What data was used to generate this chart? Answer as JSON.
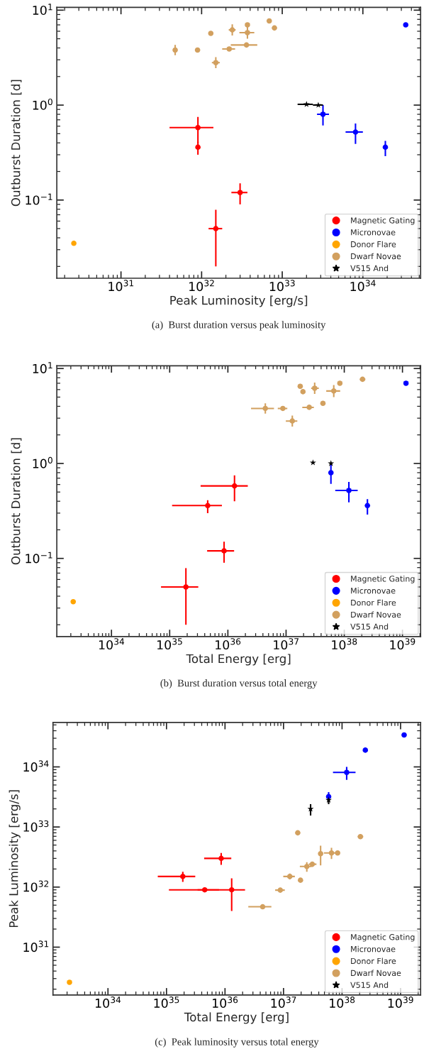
{
  "chart_data": [
    {
      "type": "scatter",
      "xlabel": "Peak Luminosity [erg/s]",
      "ylabel": "Outburst Duration [d]",
      "annotations": [
        "(a)  Burst duration versus peak luminosity"
      ],
      "log": "xy",
      "legend": "bottom right",
      "xlim": [
        1.6e+30,
        5.2e+34
      ],
      "ylim": [
        0.015,
        10.7
      ],
      "xticks": [
        {
          "value": 1e+31,
          "label": "10$^{31}$"
        },
        {
          "value": 1e+32,
          "label": "10$^{32}$"
        },
        {
          "value": 1e+33,
          "label": "10$^{33}$"
        },
        {
          "value": 1e+34,
          "label": "10$^{34}$"
        }
      ],
      "yticks": [
        {
          "value": 0.1,
          "label": "10$^{−1}$"
        },
        {
          "value": 1,
          "label": "10$^{0}$"
        },
        {
          "value": 10,
          "label": "10$^{1}$"
        }
      ],
      "series": [
        {
          "name": "Magnetic Gating",
          "color": "#ff0000",
          "marker": "circle",
          "x": [
            9e+31,
            9e+31,
            3e+32,
            1.5e+32
          ],
          "values": [
            0.58,
            0.36,
            0.12,
            0.05
          ],
          "xerrors": [
            [
              4e+31,
              1.4e+32
            ],
            null,
            [
              2.34e+32,
              3.7e+32
            ],
            [
              1.22e+32,
              1.8e+32
            ]
          ],
          "errors": [
            [
              0.4,
              0.75
            ],
            [
              0.3,
              0.41
            ],
            [
              0.09,
              0.15
            ],
            [
              0.02,
              0.079
            ]
          ]
        },
        {
          "name": "Micronovae",
          "color": "#0000ff",
          "marker": "circle",
          "x": [
            3.2e+33,
            8.1e+33,
            1.9e+34,
            3.4e+34
          ],
          "values": [
            0.8,
            0.52,
            0.36,
            7.0
          ],
          "xerrors": [
            [
              2.7e+33,
              3.8e+33
            ],
            [
              6.1e+33,
              1e+34
            ],
            null,
            null
          ],
          "errors": [
            [
              0.61,
              1.0
            ],
            [
              0.39,
              0.64
            ],
            [
              0.29,
              0.42
            ],
            null
          ]
        },
        {
          "name": "Donor Flare",
          "color": "#ffa500",
          "marker": "circle",
          "x": [
            2.6e+30
          ],
          "values": [
            0.035
          ]
        },
        {
          "name": "Dwarf Novae",
          "color": "#d2a05f",
          "marker": "circle",
          "x": [
            4.7e+31,
            8.9e+31,
            1.3e+32,
            1.5e+32,
            2.2e+32,
            2.4e+32,
            3.7e+32,
            3.7e+32,
            3.6e+32,
            6.9e+32,
            8e+32
          ],
          "values": [
            3.8,
            3.8,
            5.7,
            2.8,
            3.9,
            6.2,
            7.0,
            5.8,
            4.3,
            7.7,
            6.5
          ],
          "xerrors": [
            null,
            null,
            null,
            [
              1.34e+32,
              1.68e+32
            ],
            [
              1.8e+32,
              2.6e+32
            ],
            [
              2.17e+32,
              2.64e+32
            ],
            null,
            [
              2.94e+32,
              4.5e+32
            ],
            [
              2.3e+32,
              4.9e+32
            ],
            null,
            null
          ],
          "errors": [
            [
              3.35,
              4.3
            ],
            null,
            null,
            [
              2.45,
              3.2
            ],
            null,
            [
              5.4,
              7.1
            ],
            null,
            [
              5.0,
              6.7
            ],
            null,
            null,
            null
          ]
        },
        {
          "name": "V515 And",
          "color": "#000000",
          "marker": "star",
          "x": [
            2e+33,
            2.8e+33
          ],
          "values": [
            1.02,
            1.0
          ],
          "xerrors": [
            [
              1.55e+33,
              2.4e+33
            ],
            [
              2.4e+33,
              3.2e+33
            ]
          ]
        }
      ]
    },
    {
      "type": "scatter",
      "xlabel": "Total Energy [erg]",
      "ylabel": "Outburst Duration [d]",
      "annotations": [
        "(b)  Burst duration versus total energy"
      ],
      "log": "xy",
      "legend": "bottom right",
      "xlim": [
        1.15e+33,
        2.05e+39
      ],
      "ylim": [
        0.015,
        10.7
      ],
      "xticks": [
        {
          "value": 1e+34,
          "label": "10$^{34}$"
        },
        {
          "value": 1e+35,
          "label": "10$^{35}$"
        },
        {
          "value": 1e+36,
          "label": "10$^{36}$"
        },
        {
          "value": 1e+37,
          "label": "10$^{37}$"
        },
        {
          "value": 1e+38,
          "label": "10$^{38}$"
        },
        {
          "value": 1e+39,
          "label": "10$^{39}$"
        }
      ],
      "yticks": [
        {
          "value": 0.1,
          "label": "10$^{−1}$"
        },
        {
          "value": 1,
          "label": "10$^{0}$"
        },
        {
          "value": 10,
          "label": "10$^{1}$"
        }
      ],
      "series": [
        {
          "name": "Magnetic Gating",
          "color": "#ff0000",
          "marker": "circle",
          "x": [
            1.3e+36,
            4.5e+35,
            8.6e+35,
            1.9e+35
          ],
          "values": [
            0.58,
            0.36,
            0.12,
            0.05
          ],
          "xerrors": [
            [
              3.4e+35,
              2.2e+36
            ],
            [
              1.1e+35,
              7.9e+35
            ],
            [
              4.4e+35,
              1.28e+36
            ],
            [
              7.1e+34,
              3.1e+35
            ]
          ],
          "errors": [
            [
              0.4,
              0.75
            ],
            [
              0.3,
              0.41
            ],
            [
              0.09,
              0.15
            ],
            [
              0.02,
              0.079
            ]
          ]
        },
        {
          "name": "Micronovae",
          "color": "#0000ff",
          "marker": "circle",
          "x": [
            5.9e+37,
            1.2e+38,
            2.5e+38,
            1.15e+39
          ],
          "values": [
            0.8,
            0.52,
            0.36,
            7.0
          ],
          "xerrors": [
            null,
            [
              7e+37,
              1.7e+38
            ],
            null,
            null
          ],
          "errors": [
            [
              0.61,
              1.0
            ],
            [
              0.39,
              0.64
            ],
            [
              0.29,
              0.42
            ],
            null
          ]
        },
        {
          "name": "Donor Flare",
          "color": "#ffa500",
          "marker": "circle",
          "x": [
            2.2e+33
          ],
          "values": [
            0.035
          ]
        },
        {
          "name": "Dwarf Novae",
          "color": "#d2a05f",
          "marker": "circle",
          "x": [
            4.4e+36,
            8.8e+36,
            1.95e+37,
            1.28e+37,
            2.5e+37,
            3.1e+37,
            8.4e+37,
            6.6e+37,
            4.3e+37,
            2.06e+38,
            1.75e+37
          ],
          "values": [
            3.8,
            3.8,
            5.7,
            2.8,
            3.9,
            6.2,
            7.0,
            5.8,
            4.3,
            7.7,
            6.5
          ],
          "xerrors": [
            [
              2.5e+36,
              6.2e+36
            ],
            [
              7.2e+36,
              1.05e+37
            ],
            null,
            [
              9.9e+36,
              1.56e+37
            ],
            [
              1.9e+37,
              3e+37
            ],
            [
              2.7e+37,
              3.65e+37
            ],
            null,
            [
              4.9e+37,
              8.5e+37
            ],
            null,
            [
              1.85e+38,
              2.3e+38
            ],
            null
          ],
          "errors": [
            [
              3.35,
              4.3
            ],
            null,
            null,
            [
              2.45,
              3.2
            ],
            null,
            [
              5.4,
              7.1
            ],
            null,
            [
              5.0,
              6.7
            ],
            null,
            null,
            null
          ]
        },
        {
          "name": "V515 And",
          "color": "#000000",
          "marker": "star",
          "x": [
            2.9e+37,
            5.9e+37
          ],
          "values": [
            1.02,
            1.0
          ]
        }
      ]
    },
    {
      "type": "scatter",
      "xlabel": "Total Energy [erg]",
      "ylabel": "Peak Luminosity [erg/s]",
      "annotations": [
        "(c)  Peak luminosity versus total energy"
      ],
      "log": "xy",
      "legend": "bottom right",
      "xlim": [
        1.15e+33,
        2.2e+39
      ],
      "ylim": [
        1.6e+30,
        5.5e+34
      ],
      "xticks": [
        {
          "value": 1e+34,
          "label": "10$^{34}$"
        },
        {
          "value": 1e+35,
          "label": "10$^{35}$"
        },
        {
          "value": 1e+36,
          "label": "10$^{36}$"
        },
        {
          "value": 1e+37,
          "label": "10$^{37}$"
        },
        {
          "value": 1e+38,
          "label": "10$^{38}$"
        },
        {
          "value": 1e+39,
          "label": "10$^{39}$"
        }
      ],
      "yticks": [
        {
          "value": 1e+31,
          "label": "10$^{31}$"
        },
        {
          "value": 1e+32,
          "label": "10$^{32}$"
        },
        {
          "value": 1e+33,
          "label": "10$^{33}$"
        },
        {
          "value": 1e+34,
          "label": "10$^{34}$"
        }
      ],
      "series": [
        {
          "name": "Magnetic Gating",
          "color": "#ff0000",
          "marker": "circle",
          "x": [
            1.3e+36,
            4.5e+35,
            8.6e+35,
            1.9e+35
          ],
          "values": [
            9e+31,
            9e+31,
            3e+32,
            1.5e+32
          ],
          "xerrors": [
            [
              3.4e+35,
              2.2e+36
            ],
            [
              1.1e+35,
              7.9e+35
            ],
            [
              4.4e+35,
              1.28e+36
            ],
            [
              7.1e+34,
              3.1e+35
            ]
          ],
          "errors": [
            [
              4e+31,
              1.4e+32
            ],
            null,
            [
              2.34e+32,
              3.7e+32
            ],
            [
              1.22e+32,
              1.8e+32
            ]
          ]
        },
        {
          "name": "Micronovae",
          "color": "#0000ff",
          "marker": "circle",
          "x": [
            5.9e+37,
            1.2e+38,
            2.5e+38,
            1.15e+39
          ],
          "values": [
            3.2e+33,
            8.1e+33,
            1.9e+34,
            3.4e+34
          ],
          "xerrors": [
            null,
            [
              7e+37,
              1.7e+38
            ],
            null,
            null
          ],
          "errors": [
            [
              2.7e+33,
              3.8e+33
            ],
            [
              6.1e+33,
              1e+34
            ],
            null,
            null
          ]
        },
        {
          "name": "Donor Flare",
          "color": "#ffa500",
          "marker": "circle",
          "x": [
            2.2e+33
          ],
          "values": [
            2.6e+30
          ]
        },
        {
          "name": "Dwarf Novae",
          "color": "#d2a05f",
          "marker": "circle",
          "x": [
            4.4e+36,
            8.8e+36,
            1.95e+37,
            1.28e+37,
            2.5e+37,
            3.1e+37,
            8.4e+37,
            6.6e+37,
            4.3e+37,
            2.06e+38,
            1.75e+37
          ],
          "values": [
            4.7e+31,
            8.9e+31,
            1.3e+32,
            1.5e+32,
            2.2e+32,
            2.4e+32,
            3.7e+32,
            3.7e+32,
            3.6e+32,
            6.9e+32,
            8e+32
          ],
          "xerrors": [
            [
              2.5e+36,
              6.2e+36
            ],
            [
              7.2e+36,
              1.05e+37
            ],
            null,
            [
              9.9e+36,
              1.56e+37
            ],
            [
              1.9e+37,
              3e+37
            ],
            [
              2.7e+37,
              3.65e+37
            ],
            null,
            [
              4.9e+37,
              8.5e+37
            ],
            null,
            [
              1.85e+38,
              2.3e+38
            ],
            null
          ],
          "errors": [
            null,
            null,
            null,
            [
              1.34e+32,
              1.68e+32
            ],
            [
              1.8e+32,
              2.6e+32
            ],
            [
              2.17e+32,
              2.64e+32
            ],
            null,
            [
              2.94e+32,
              4.5e+32
            ],
            [
              2.3e+32,
              4.9e+32
            ],
            null,
            null
          ]
        },
        {
          "name": "V515 And",
          "color": "#000000",
          "marker": "star",
          "x": [
            2.9e+37,
            5.9e+37
          ],
          "values": [
            2e+33,
            2.8e+33
          ],
          "errors": [
            [
              1.55e+33,
              2.4e+33
            ],
            [
              2.4e+33,
              3.2e+33
            ]
          ]
        }
      ]
    }
  ]
}
